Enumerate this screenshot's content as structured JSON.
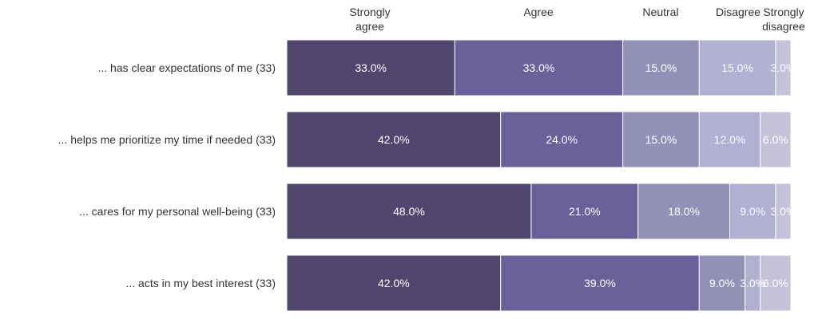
{
  "chart_data": {
    "type": "bar",
    "orientation": "horizontal",
    "stacked": true,
    "percent": true,
    "categories": [
      "... has clear expectations of me (33)",
      "... helps me prioritize my time if needed (33)",
      "... cares for my personal well-being (33)",
      "... acts in my best interest (33)"
    ],
    "series": [
      {
        "name": "Strongly\nagree",
        "color": "#51466d",
        "values": [
          33.0,
          42.0,
          48.0,
          42.0
        ]
      },
      {
        "name": "Agree",
        "color": "#6a619a",
        "values": [
          33.0,
          24.0,
          21.0,
          39.0
        ]
      },
      {
        "name": "Neutral",
        "color": "#9290b7",
        "values": [
          15.0,
          15.0,
          18.0,
          9.0
        ]
      },
      {
        "name": "Disagree",
        "color": "#b1afd2",
        "values": [
          15.0,
          12.0,
          9.0,
          3.0
        ]
      },
      {
        "name": "Strongly\ndisagree",
        "color": "#c3c2d9",
        "values": [
          3.0,
          6.0,
          3.0,
          6.0
        ]
      }
    ],
    "value_format": "{v}%",
    "xlim": [
      0,
      99
    ],
    "legend_position": "top"
  }
}
